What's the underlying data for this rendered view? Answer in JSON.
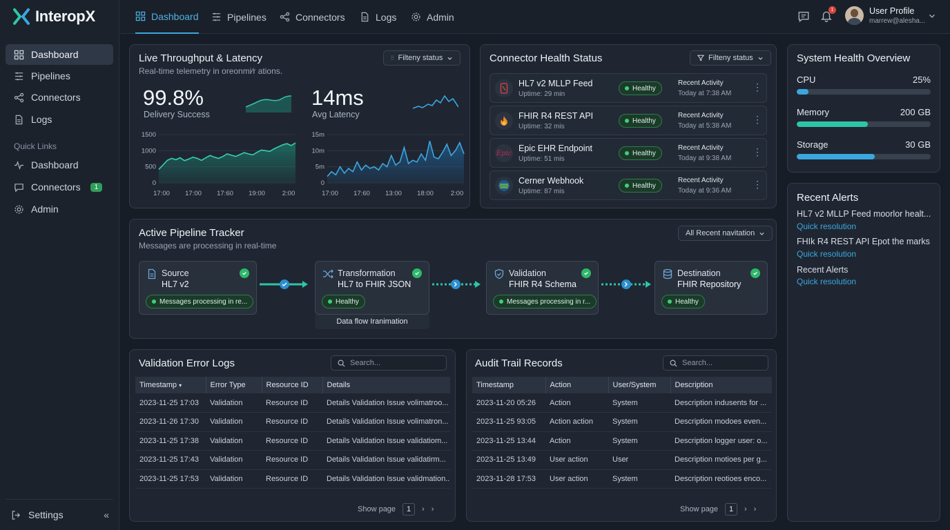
{
  "app": {
    "name": "InteropX"
  },
  "sidebar": {
    "items": [
      {
        "label": "Dashboard",
        "icon": "grid-icon"
      },
      {
        "label": "Pipelines",
        "icon": "list-icon"
      },
      {
        "label": "Connectors",
        "icon": "share-icon"
      },
      {
        "label": "Logs",
        "icon": "file-icon"
      }
    ],
    "quick_links_title": "Quick Links",
    "quick_links": [
      {
        "label": "Dashboard",
        "icon": "pulse-icon"
      },
      {
        "label": "Connectors",
        "icon": "chat-icon",
        "badge": "1"
      },
      {
        "label": "Admin",
        "icon": "gear-icon"
      }
    ],
    "settings_label": "Settings"
  },
  "topnav": {
    "tabs": [
      {
        "label": "Dashboard",
        "icon": "grid-icon",
        "active": true
      },
      {
        "label": "Pipelines",
        "icon": "list-icon"
      },
      {
        "label": "Connectors",
        "icon": "share-icon"
      },
      {
        "label": "Logs",
        "icon": "file-icon"
      },
      {
        "label": "Admin",
        "icon": "gear-icon"
      }
    ],
    "notification_count": "1",
    "user": {
      "name": "User Profile",
      "email": "marrew@alesha..."
    }
  },
  "throughput": {
    "title": "Live Throughput & Latency",
    "subtitle": "Real-time telemetry in oreonmi⁄r ations.",
    "filter": "Filteny status",
    "kpi1": {
      "value": "99.8%",
      "label": "Delivery Success"
    },
    "kpi2": {
      "value": "14ms",
      "label": "Avg Latency"
    }
  },
  "chart_data": [
    {
      "type": "area",
      "yticks": [
        "1500",
        "1000",
        "500",
        "0"
      ],
      "ylim": [
        0,
        1500
      ],
      "xticks": [
        "17:00",
        "17:00",
        "17:60",
        "19:00",
        "2:00"
      ],
      "values": [
        420,
        560,
        700,
        760,
        720,
        780,
        690,
        740,
        800,
        760,
        700,
        780,
        850,
        800,
        760,
        820,
        900,
        860,
        820,
        880,
        940,
        900,
        870,
        950,
        1020,
        1000,
        980,
        1060,
        1120,
        1180,
        1220,
        1160,
        1240
      ]
    },
    {
      "type": "area",
      "yticks": [
        "15m",
        "10m",
        "5m",
        "0"
      ],
      "ylim": [
        0,
        15
      ],
      "xticks": [
        "17:00",
        "17:60",
        "13:00",
        "18:00",
        "2:00"
      ],
      "values": [
        2.0,
        3.5,
        2.5,
        5.0,
        3.0,
        4.5,
        3.5,
        6.5,
        4.0,
        5.5,
        4.5,
        5.0,
        4.0,
        6.0,
        5.0,
        8.5,
        5.5,
        6.5,
        11.0,
        6.0,
        7.0,
        6.5,
        9.0,
        7.0,
        13.0,
        8.0,
        7.5,
        9.5,
        12.0,
        8.5,
        10.0,
        12.5,
        9.0
      ]
    }
  ],
  "connectors": {
    "title": "Connector Health Status",
    "filter": "Filteny status",
    "items": [
      {
        "name": "HL7 v2 MLLP Feed",
        "uptime": "Uptime: 29 min",
        "status": "Healthy",
        "activity": "Recent Activity",
        "time": "Today at 7:38 AM",
        "icon": "device-icon"
      },
      {
        "name": "FHIR R4 REST API",
        "uptime": "Uptime: 32 mis",
        "status": "Healthy",
        "activity": "Recent Activity",
        "time": "Today at 5:38 AM",
        "icon": "fire-icon"
      },
      {
        "name": "Epic EHR Endpoint",
        "uptime": "Uptime: 51 mis",
        "status": "Healthy",
        "activity": "Recent Activity",
        "time": "Today at 9:38 AM",
        "icon": "epic-logo",
        "logo_text": "Epic"
      },
      {
        "name": "Cerner Webhook",
        "uptime": "Uptime: 87 mis",
        "status": "Healthy",
        "activity": "Recent Activity",
        "time": "Today at 9:36 AM",
        "icon": "cerner-logo"
      }
    ]
  },
  "system": {
    "title": "System Health Overview",
    "metrics": [
      {
        "label": "CPU",
        "value": "25%",
        "fraction": 0.09,
        "color": "#3ba7df"
      },
      {
        "label": "Memory",
        "value": "200 GB",
        "fraction": 0.53,
        "color": "#2fc4a8"
      },
      {
        "label": "Storage",
        "value": "30 GB",
        "fraction": 0.58,
        "color": "#3ba7df"
      }
    ]
  },
  "alerts": {
    "title": "Recent Alerts",
    "items": [
      {
        "text": "HL7 v2 MLLP Feed moorlor healt...",
        "link": "Quick resolution"
      },
      {
        "text": "FHIk R4 REST API Epot the marks",
        "link": "Quick resolution"
      },
      {
        "text": "Recent Alerts",
        "link": "Quick resolution"
      }
    ]
  },
  "pipeline": {
    "title": "Active Pipeline Tracker",
    "subtitle": "Messages are processing in real-time",
    "dropdown": "All Recent navitation",
    "flow_caption": "Data flow Iranimation",
    "nodes": [
      {
        "label": "Source",
        "value": "HL7 v2",
        "status": "Messages processing in re...",
        "icon": "doc-icon"
      },
      {
        "label": "Transformation",
        "value": "HL7 to FHIR JSON",
        "status": "Healthy",
        "icon": "shuffle-icon"
      },
      {
        "label": "Validation",
        "value": "FHIR R4 Schema",
        "status": "Messages processing in r...",
        "icon": "shield-icon"
      },
      {
        "label": "Destination",
        "value": "FHIR Repository",
        "status": "Healthy",
        "icon": "database-icon"
      }
    ]
  },
  "validation": {
    "title": "Validation Error Logs",
    "search_placeholder": "Search...",
    "columns": [
      "Timestamp",
      "Error Type",
      "Resource ID",
      "Details"
    ],
    "rows": [
      [
        "2023-11-25 17:03",
        "Validation",
        "Resource ID",
        "Details Validation Issue volimatroo..."
      ],
      [
        "2023-11-26 17:30",
        "Validation",
        "Resource ID",
        "Details Validation Issue volimatron..."
      ],
      [
        "2023-11-25 17:38",
        "Validation",
        "Resource ID",
        "Details Validation Issue validatiom..."
      ],
      [
        "2023-11-25 17:43",
        "Validation",
        "Resource ID",
        "Details Validation Issue validatirm..."
      ],
      [
        "2023-11-25 17:53",
        "Validation",
        "Resource ID",
        "Details Validation Issue validmation..."
      ]
    ],
    "pager_label": "Show page",
    "page": "1"
  },
  "audit": {
    "title": "Audit Trail Records",
    "search_placeholder": "Search...",
    "columns": [
      "Timestamp",
      "Action",
      "User/System",
      "Description"
    ],
    "rows": [
      [
        "2023-11-20 05:26",
        "Action",
        "System",
        "Description indusents for ..."
      ],
      [
        "2023-11-25 93:05",
        "Action action",
        "System",
        "Description modoes even..."
      ],
      [
        "2023-11-25 13:44",
        "Action",
        "System",
        "Description logger user: o..."
      ],
      [
        "2023-11-25 13:49",
        "User action",
        "User",
        "Description motioes per g..."
      ],
      [
        "2023-11-28 17:53",
        "User action",
        "System",
        "Description reotioes enco..."
      ]
    ],
    "pager_label": "Show page",
    "page": "1"
  }
}
